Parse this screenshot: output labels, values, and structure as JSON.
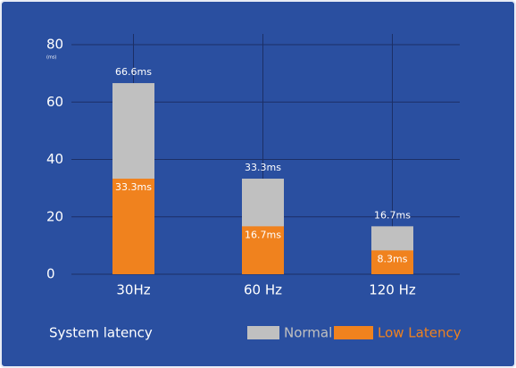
{
  "chart_data": {
    "type": "bar",
    "y_unit": "(ms)",
    "footer": "System latency",
    "categories": [
      "30Hz",
      "60 Hz",
      "120 Hz"
    ],
    "series": [
      {
        "name": "Normal",
        "color": "#c0c0c0",
        "values": [
          66.6,
          33.3,
          16.7
        ],
        "value_labels": [
          "66.6ms",
          "33.3ms",
          "16.7ms"
        ]
      },
      {
        "name": "Low Latency",
        "color": "#f0821e",
        "values": [
          33.3,
          16.7,
          8.3
        ],
        "value_labels": [
          "33.3ms",
          "16.7ms",
          "8.3ms"
        ]
      }
    ],
    "ylim": [
      0,
      80
    ],
    "yticks": [
      0,
      20,
      40,
      60,
      80
    ],
    "grid": true
  }
}
